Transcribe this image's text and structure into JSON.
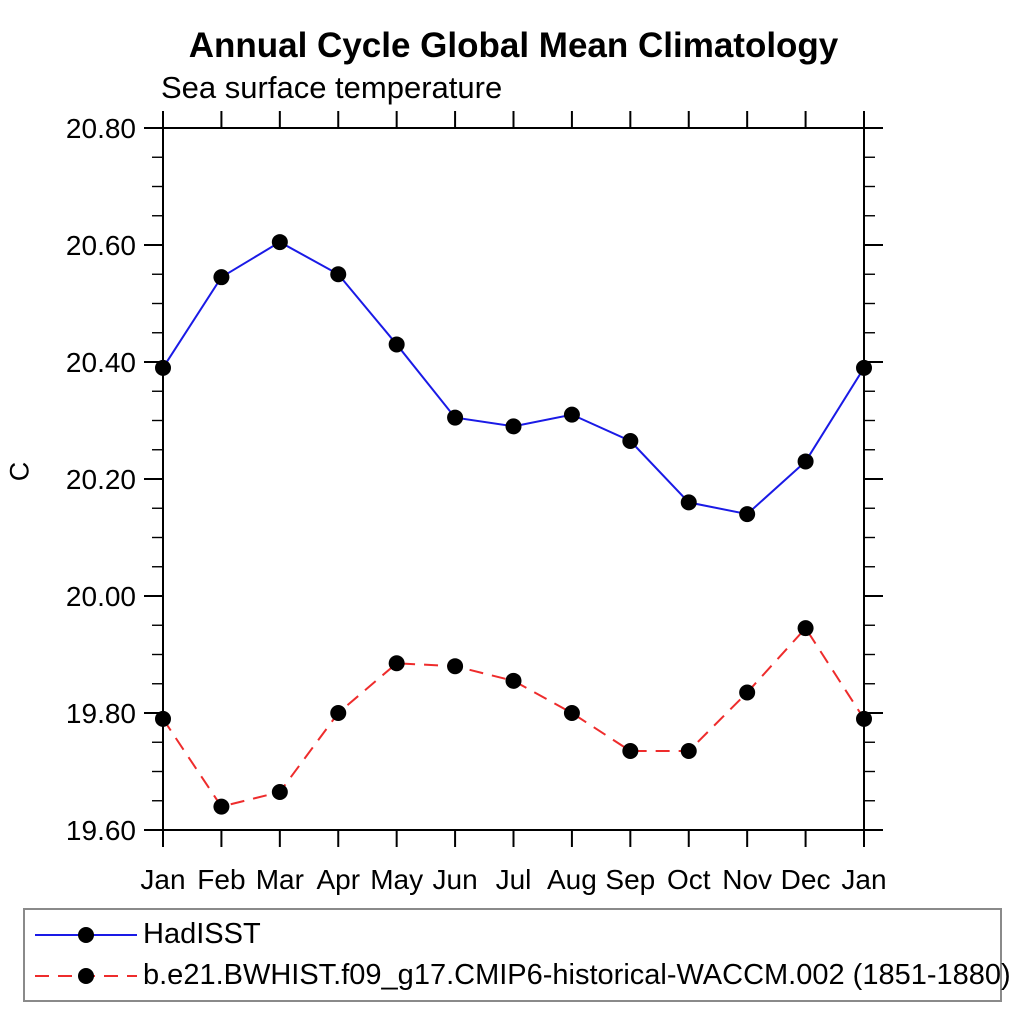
{
  "chart_data": {
    "type": "line",
    "title": "Annual Cycle Global Mean Climatology",
    "subtitle": "Sea surface temperature",
    "ylabel": "C",
    "x_categories": [
      "Jan",
      "Feb",
      "Mar",
      "Apr",
      "May",
      "Jun",
      "Jul",
      "Aug",
      "Sep",
      "Oct",
      "Nov",
      "Dec",
      "Jan"
    ],
    "ylim": [
      19.6,
      20.8
    ],
    "ytick_labels": [
      "19.60",
      "19.80",
      "20.00",
      "20.20",
      "20.40",
      "20.60",
      "20.80"
    ],
    "ytick_minor_interval": 0.05,
    "grid": "off",
    "legend_position": "bottom-left-box",
    "axis_color": "#000000",
    "marker_color": "#000000",
    "series": [
      {
        "name": "HadISST",
        "color": "#1a1ae6",
        "style": "solid",
        "marker": "circle",
        "values": [
          20.39,
          20.545,
          20.605,
          20.55,
          20.43,
          20.305,
          20.29,
          20.31,
          20.265,
          20.16,
          20.14,
          20.23,
          20.39
        ]
      },
      {
        "name": "b.e21.BWHIST.f09_g17.CMIP6-historical-WACCM.002 (1851-1880)",
        "color": "#ee2c2c",
        "style": "dashed",
        "marker": "circle",
        "values": [
          19.79,
          19.64,
          19.665,
          19.8,
          19.885,
          19.88,
          19.855,
          19.8,
          19.735,
          19.735,
          19.835,
          19.945,
          19.79
        ]
      }
    ]
  }
}
